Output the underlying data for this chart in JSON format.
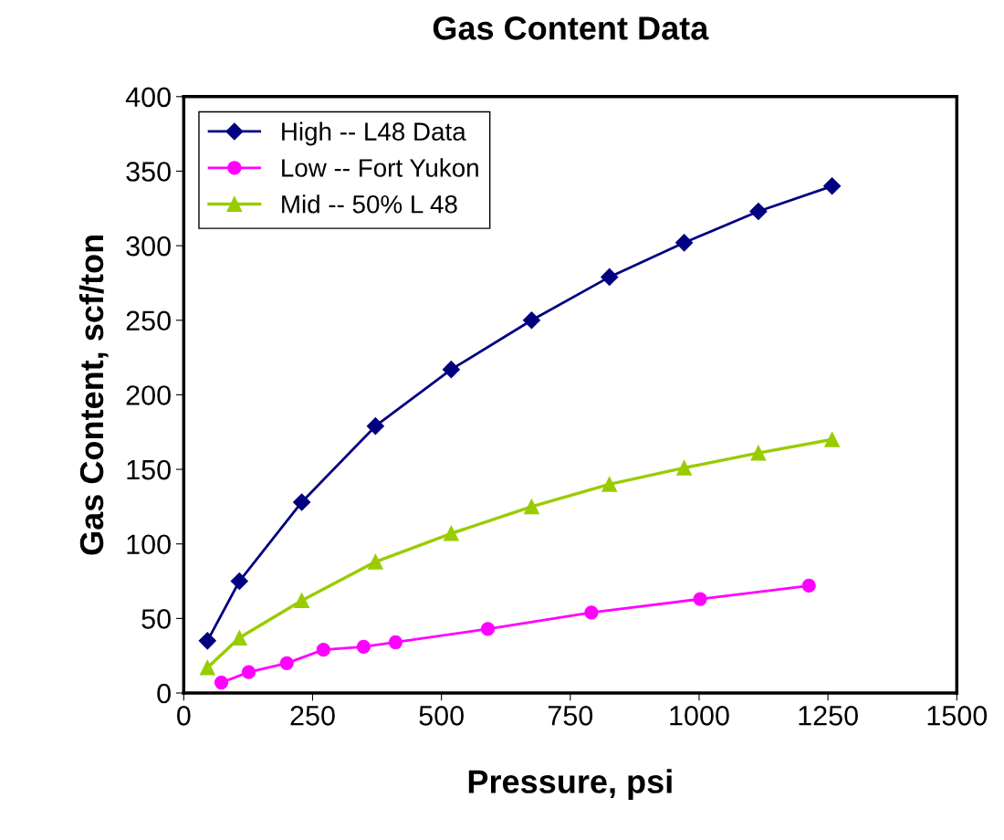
{
  "chart_data": {
    "type": "line",
    "title": "Gas Content Data",
    "xlabel": "Pressure, psi",
    "ylabel": "Gas Content, scf/ton",
    "xlim": [
      0,
      1500
    ],
    "xticks": [
      0,
      250,
      500,
      750,
      1000,
      1250,
      1500
    ],
    "ylim": [
      0,
      400
    ],
    "yticks": [
      0,
      50,
      100,
      150,
      200,
      250,
      300,
      350,
      400
    ],
    "grid": false,
    "legend": "top left",
    "series": [
      {
        "name": "High -- L48 Data",
        "color": "#000080",
        "marker": "diamond",
        "x": [
          46,
          108,
          229,
          372,
          519,
          675,
          826,
          971,
          1115,
          1258
        ],
        "values": [
          35,
          75,
          128,
          179,
          217,
          250,
          279,
          302,
          323,
          340
        ]
      },
      {
        "name": "Low -- Fort Yukon",
        "color": "#ff00ff",
        "marker": "circle",
        "x": [
          73,
          126,
          200,
          271,
          349,
          411,
          590,
          791,
          1002,
          1213
        ],
        "values": [
          7,
          14,
          20,
          29,
          31,
          34,
          43,
          54,
          63,
          72
        ]
      },
      {
        "name": "Mid -- 50% L 48",
        "color": "#99cc00",
        "marker": "triangle",
        "x": [
          46,
          108,
          229,
          372,
          519,
          675,
          826,
          971,
          1115,
          1258
        ],
        "values": [
          17,
          37,
          62,
          88,
          107,
          125,
          140,
          151,
          161,
          170
        ]
      }
    ]
  }
}
